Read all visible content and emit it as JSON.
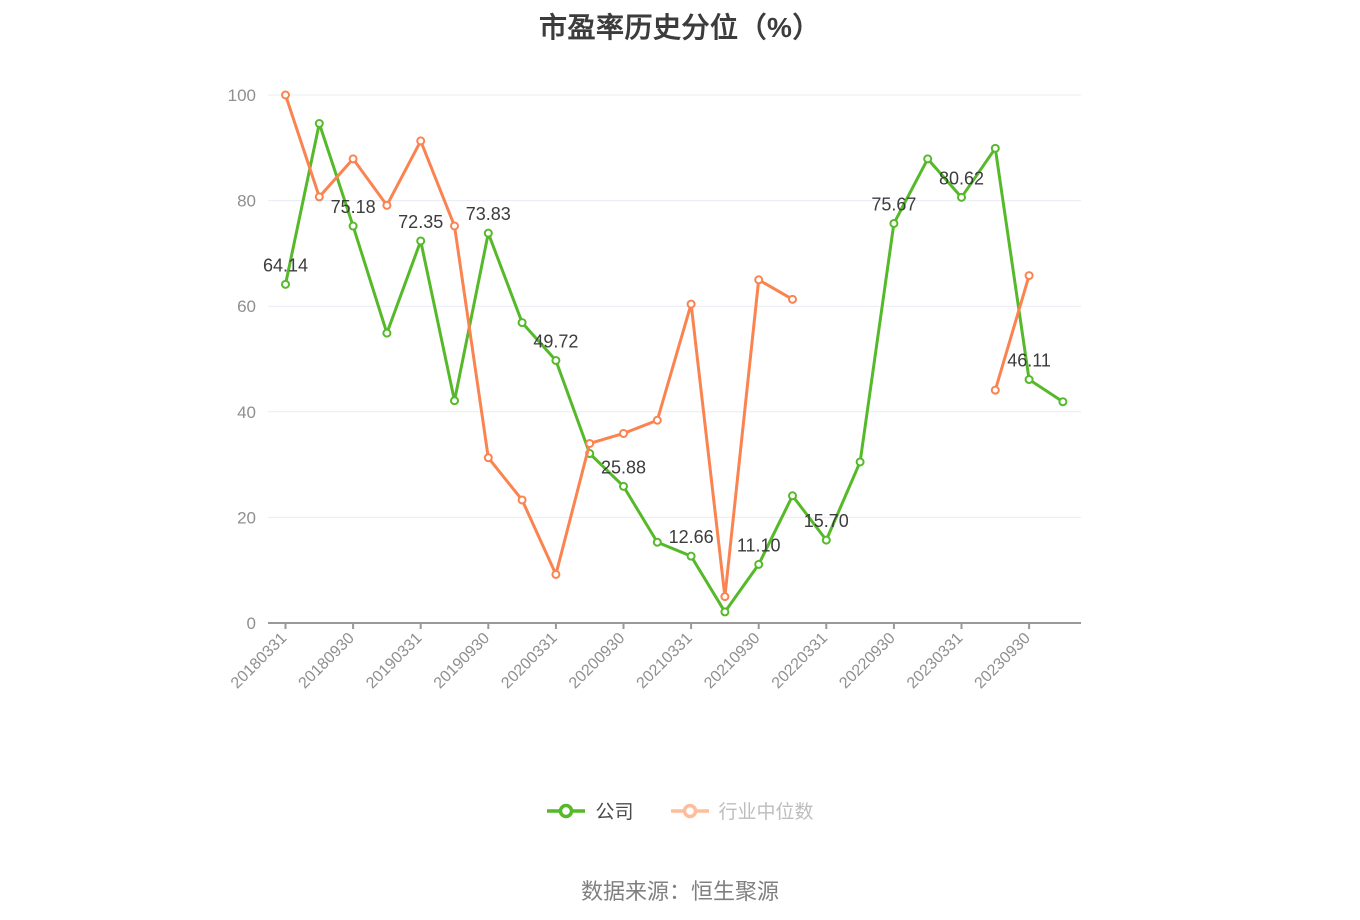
{
  "header": {
    "title": "市盈率历史分位（%）"
  },
  "footer": {
    "source": "数据来源：恒生聚源"
  },
  "legend": [
    {
      "label": "公司",
      "icon_color": "#55b92a",
      "text_color": "#4a4a4a"
    },
    {
      "label": "行业中位数",
      "icon_color": "#ffbd9c",
      "text_color": "#bdbdbd"
    }
  ],
  "chart_data": {
    "type": "line",
    "title": "市盈率历史分位（%）",
    "source_note": "数据来源：恒生聚源",
    "ylim": [
      0,
      100
    ],
    "y_ticks": [
      0,
      20,
      40,
      60,
      80,
      100
    ],
    "grid": true,
    "legend_position": "bottom",
    "x_tick_labels": [
      "20180331",
      "20180930",
      "20190331",
      "20190930",
      "20200331",
      "20200930",
      "20210331",
      "20210930",
      "20220331",
      "20220930",
      "20230331",
      "20230930"
    ],
    "x_points_count": 24,
    "x_label_every_n_points": 2,
    "x_labels_rotated_degrees": 45,
    "colors": {
      "grid": "#e8ecf4",
      "axis_line": "#999999",
      "axis_label": "#8f8f8f",
      "data_label": "#3c3c3c",
      "title": "#3c3c3c",
      "source": "#808080",
      "background": "#ffffff"
    },
    "series": [
      {
        "id": "company",
        "name": "公司",
        "color": "#55b92a",
        "values": [
          64.14,
          94.6,
          75.18,
          54.9,
          72.35,
          42.1,
          73.83,
          56.9,
          49.72,
          32.1,
          25.88,
          15.3,
          12.66,
          2.1,
          11.1,
          24.1,
          15.7,
          30.5,
          75.67,
          87.9,
          80.62,
          89.9,
          46.11,
          41.9
        ],
        "point_labels": [
          "64.14",
          null,
          "75.18",
          null,
          "72.35",
          null,
          "73.83",
          null,
          "49.72",
          null,
          "25.88",
          null,
          "12.66",
          null,
          "11.10",
          null,
          "15.70",
          null,
          "75.67",
          null,
          "80.62",
          null,
          "46.11",
          null
        ]
      },
      {
        "id": "industry_median",
        "name": "行业中位数",
        "color": "#fa8350",
        "values": [
          100,
          80.7,
          87.9,
          79.1,
          91.3,
          75.2,
          31.3,
          23.3,
          9.2,
          34.0,
          35.9,
          38.4,
          60.4,
          5.0,
          65.0,
          61.3,
          null,
          null,
          null,
          null,
          null,
          44.1,
          65.8,
          null
        ],
        "point_labels": []
      }
    ]
  }
}
